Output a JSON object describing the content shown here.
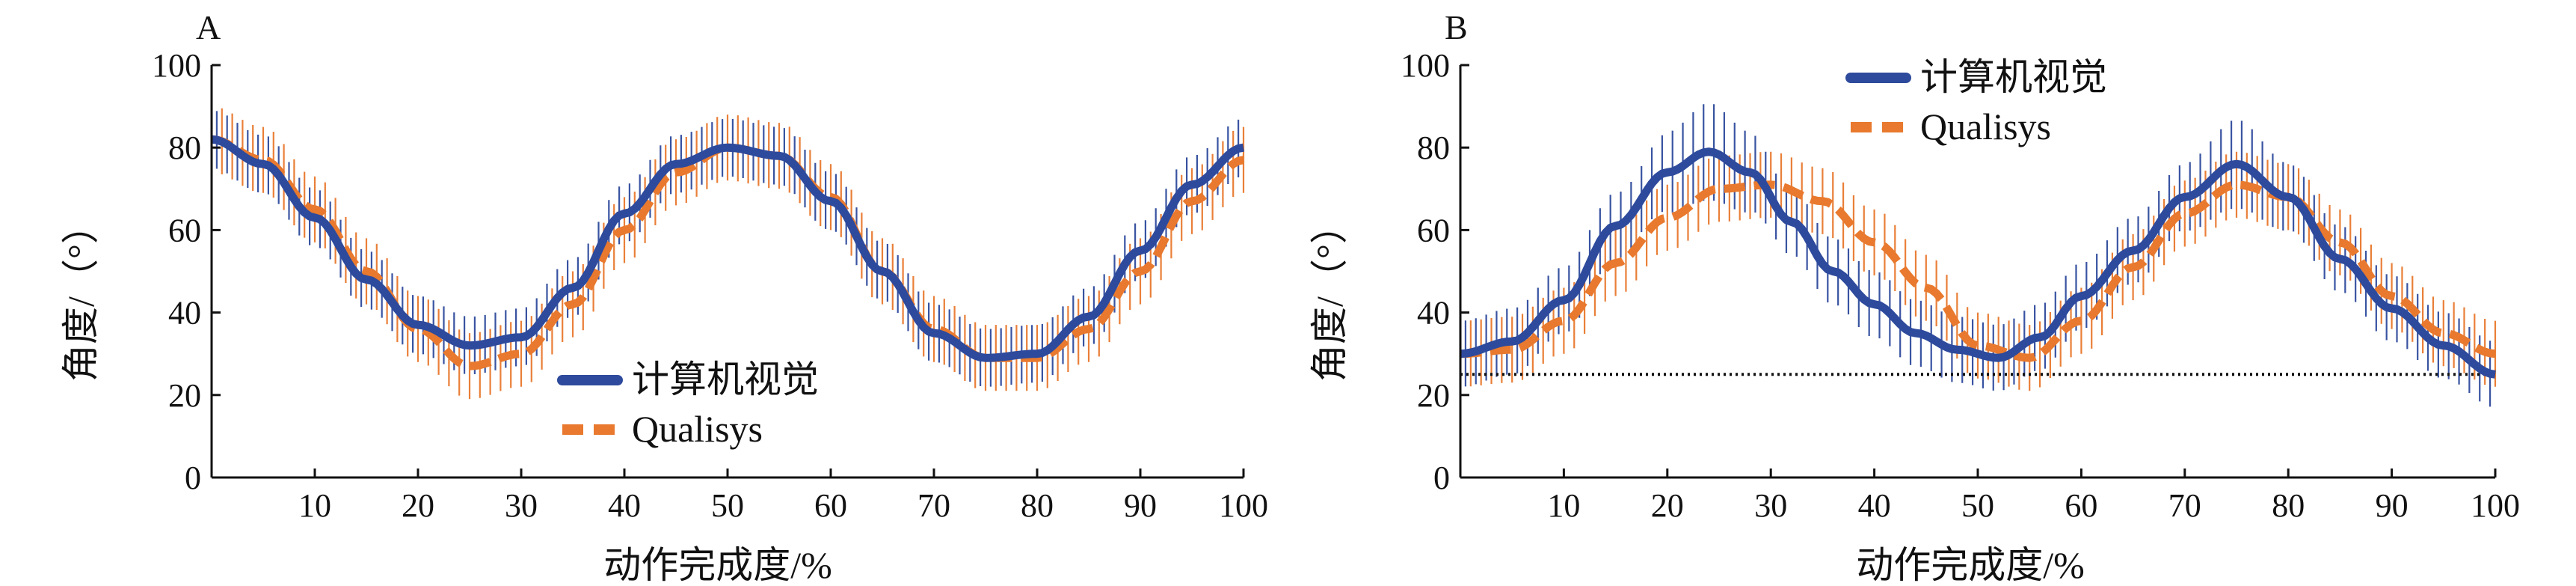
{
  "colors": {
    "cv": "#2e4a9c",
    "q": "#e8792e",
    "axis": "#111111",
    "ref": "#111111"
  },
  "chart_data": [
    {
      "type": "line",
      "panel_label": "A",
      "xlabel": "动作完成度/%",
      "ylabel": "角度/（°）",
      "xlim": [
        0,
        100
      ],
      "ylim": [
        0,
        100
      ],
      "xticks": [
        "10",
        "20",
        "30",
        "40",
        "50",
        "60",
        "70",
        "80",
        "90",
        "100"
      ],
      "yticks": [
        "0",
        "20",
        "40",
        "60",
        "80",
        "100"
      ],
      "legend_position": "bottom-center",
      "series": [
        {
          "name": "计算机视觉",
          "style": "solid",
          "sd": 7,
          "x": [
            0,
            5,
            10,
            15,
            20,
            25,
            30,
            35,
            40,
            45,
            50,
            55,
            60,
            65,
            70,
            75,
            80,
            85,
            90,
            95,
            100
          ],
          "y": [
            82,
            76,
            63,
            48,
            37,
            32,
            34,
            46,
            64,
            76,
            80,
            78,
            67,
            50,
            35,
            29,
            30,
            39,
            55,
            71,
            80
          ]
        },
        {
          "name": "Qualisys",
          "style": "dashed",
          "sd": 8,
          "x": [
            0,
            5,
            10,
            15,
            20,
            25,
            30,
            35,
            40,
            45,
            50,
            55,
            60,
            65,
            70,
            75,
            80,
            85,
            90,
            95,
            100
          ],
          "y": [
            82,
            77,
            65,
            50,
            36,
            27,
            30,
            42,
            60,
            74,
            80,
            78,
            68,
            50,
            36,
            29,
            29,
            36,
            50,
            67,
            77
          ]
        }
      ]
    },
    {
      "type": "line",
      "panel_label": "B",
      "xlabel": "动作完成度/%",
      "ylabel": "角度/（°）",
      "xlim": [
        0,
        100
      ],
      "ylim": [
        0,
        100
      ],
      "xticks": [
        "10",
        "20",
        "30",
        "40",
        "50",
        "60",
        "70",
        "80",
        "90",
        "100"
      ],
      "yticks": [
        "0",
        "20",
        "40",
        "60",
        "80",
        "100"
      ],
      "reference_line": 25,
      "legend_position": "top-center",
      "series": [
        {
          "name": "计算机视觉",
          "style": "solid",
          "sd": 8,
          "x": [
            0,
            5,
            10,
            15,
            20,
            24,
            28,
            32,
            36,
            40,
            44,
            48,
            52,
            56,
            60,
            65,
            70,
            75,
            80,
            85,
            90,
            95,
            100
          ],
          "y": [
            30,
            33,
            43,
            61,
            74,
            79,
            74,
            62,
            50,
            42,
            35,
            31,
            29,
            34,
            44,
            55,
            68,
            76,
            68,
            53,
            41,
            32,
            25
          ],
          "sd_override": {
            "24": 12,
            "75": 11
          }
        },
        {
          "name": "Qualisys",
          "style": "dashed",
          "sd": 8,
          "x": [
            0,
            5,
            10,
            15,
            20,
            25,
            30,
            35,
            40,
            45,
            50,
            55,
            60,
            65,
            70,
            75,
            80,
            85,
            90,
            95,
            100
          ],
          "y": [
            30,
            31,
            38,
            52,
            63,
            70,
            71,
            67,
            57,
            46,
            32,
            29,
            38,
            51,
            64,
            71,
            68,
            57,
            44,
            35,
            30
          ]
        }
      ]
    }
  ]
}
